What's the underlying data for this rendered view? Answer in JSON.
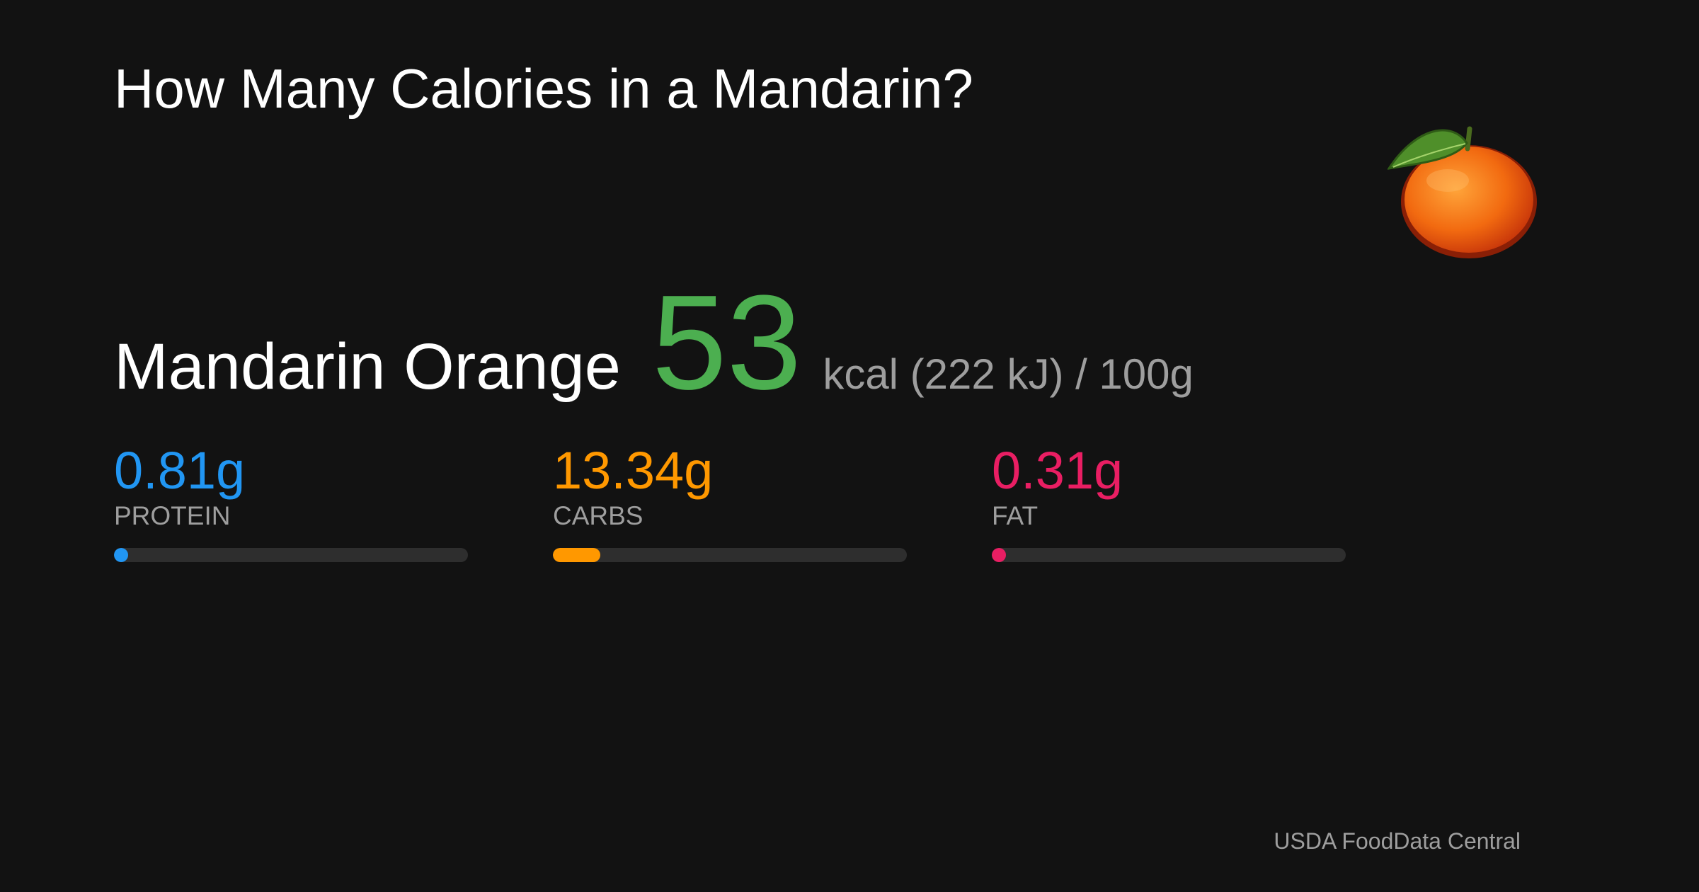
{
  "header": {
    "title": "How Many Calories in a Mandarin?"
  },
  "food": {
    "name": "Mandarin Orange",
    "calories": 53,
    "unit": "kcal (222 kJ) / 100g"
  },
  "macros": {
    "names": [
      "PROTEIN",
      "CARBS",
      "FAT"
    ],
    "values": [
      0.81,
      13.34,
      0.31
    ],
    "value_labels": [
      "0.81g",
      "13.34g",
      "0.31g"
    ],
    "colors": [
      "#2196f3",
      "#ff9800",
      "#e91e63"
    ]
  },
  "footer": {
    "source": "USDA FoodData Central"
  }
}
